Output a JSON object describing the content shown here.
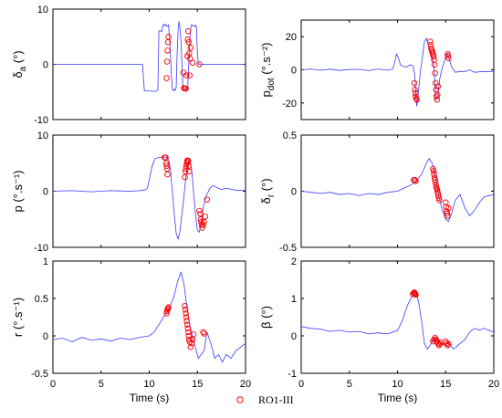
{
  "colors": {
    "line": "#3a3aff",
    "marker": "#ff0000",
    "axis": "#000000"
  },
  "legend": {
    "label": "RO1-III",
    "marker": "circle"
  },
  "chart_data": [
    {
      "type": "line",
      "id": "delta_a",
      "ylabel": {
        "main": "δ",
        "sub": "a",
        "unit": "(°)"
      },
      "xlim": [
        0,
        20
      ],
      "ylim": [
        -10,
        10
      ],
      "xticks": [],
      "yticks": [
        -10,
        0,
        10
      ],
      "xlabel": "",
      "series": [
        {
          "style": "line",
          "x": [
            0,
            9.3,
            9.5,
            10.7,
            10.9,
            11.0,
            11.1,
            11.2,
            11.3,
            11.4,
            11.5,
            11.6,
            11.7,
            11.8,
            11.9,
            12.0,
            12.1,
            12.2,
            12.3,
            12.4,
            12.5,
            12.6,
            12.7,
            12.8,
            12.9,
            13.0,
            13.1,
            13.2,
            13.3,
            13.4,
            13.5,
            13.6,
            13.7,
            13.8,
            13.9,
            14.0,
            14.1,
            14.2,
            14.3,
            14.4,
            14.5,
            14.6,
            14.7,
            14.8,
            14.9,
            15.0,
            15.1,
            15.2,
            15.3,
            15.5,
            20
          ],
          "y": [
            0,
            0,
            -4.8,
            -4.9,
            -4.6,
            6.0,
            6.1,
            6.0,
            5.9,
            7.0,
            7.2,
            7.0,
            7.3,
            7.0,
            6.9,
            7.1,
            5.0,
            2.0,
            -2.0,
            -4.5,
            -4.8,
            -4.5,
            -4.7,
            -4.2,
            2.0,
            6.5,
            7.8,
            6.5,
            4.0,
            0.0,
            -4.2,
            -4.6,
            -4.4,
            -4.3,
            -4.5,
            -4.2,
            0.0,
            4.0,
            6.5,
            7.2,
            7.0,
            7.0,
            6.9,
            7.1,
            6.8,
            2.0,
            0.0,
            0.1,
            -0.1,
            0.0,
            0.0
          ]
        },
        {
          "style": "markers",
          "x": [
            11.8,
            11.85,
            11.9,
            11.95,
            12.0,
            13.55,
            13.6,
            13.7,
            13.8,
            13.85,
            13.95,
            14.0,
            14.05,
            14.1,
            14.15,
            14.2,
            14.25,
            14.3,
            14.5,
            15.2
          ],
          "y": [
            -2.5,
            0.5,
            2.5,
            4.0,
            5.0,
            -1.5,
            -4.3,
            -4.4,
            -4.4,
            -2.0,
            1.5,
            4.5,
            6.0,
            4.0,
            2.0,
            -2.0,
            1.0,
            3.0,
            0.3,
            0.0
          ]
        }
      ]
    },
    {
      "type": "line",
      "id": "p_dot",
      "ylabel": {
        "main": "p",
        "sub": "dot",
        "unit": "(°.s⁻²)"
      },
      "xlim": [
        0,
        20
      ],
      "ylim": [
        -30,
        30
      ],
      "xticks": [],
      "yticks": [
        -20,
        0,
        20
      ],
      "xlabel": "",
      "series": [
        {
          "style": "line",
          "x": [
            0,
            1,
            2,
            3,
            4,
            5,
            6,
            7,
            8,
            9,
            9.5,
            9.7,
            9.9,
            10.1,
            10.3,
            10.6,
            11.0,
            11.3,
            11.6,
            11.8,
            11.9,
            12.0,
            12.2,
            12.4,
            12.6,
            12.8,
            13.0,
            13.2,
            13.4,
            13.6,
            13.8,
            13.9,
            14.0,
            14.2,
            14.4,
            14.6,
            14.8,
            15.0,
            15.2,
            15.4,
            15.6,
            15.8,
            16.0,
            16.5,
            17,
            17.5,
            18,
            19,
            20
          ],
          "y": [
            0,
            0.5,
            -0.3,
            0.4,
            -0.4,
            0.2,
            0.3,
            -0.5,
            0.5,
            -0.3,
            0.5,
            4.0,
            9.5,
            7.0,
            3.0,
            2.0,
            1.8,
            3.0,
            2.5,
            -3.0,
            -15.0,
            -22.0,
            -12.0,
            0.0,
            8.0,
            17.0,
            19.0,
            15.0,
            12.0,
            8.0,
            2.0,
            -10.0,
            -18.0,
            -16.0,
            -5.0,
            0.0,
            4.0,
            8.0,
            10.0,
            6.0,
            2.0,
            0.0,
            -1.5,
            -1.0,
            -1.0,
            0.0,
            -1.5,
            -1.0,
            -1.0
          ]
        },
        {
          "style": "markers",
          "x": [
            11.75,
            11.8,
            11.85,
            11.9,
            11.95,
            12.0,
            13.4,
            13.45,
            13.5,
            13.55,
            13.6,
            13.65,
            13.7,
            13.75,
            13.8,
            13.85,
            13.9,
            13.95,
            14.0,
            14.05,
            14.1,
            14.15,
            14.2,
            15.2,
            15.25,
            15.3
          ],
          "y": [
            -8.0,
            -12.0,
            -14.0,
            -16.0,
            -17.5,
            -18.0,
            17.0,
            15.0,
            13.0,
            12.0,
            11.0,
            10.0,
            9.0,
            8.0,
            6.0,
            3.0,
            -2.0,
            -8.0,
            -12.0,
            -16.0,
            -18.0,
            -15.0,
            -10.0,
            9.5,
            8.5,
            7.0
          ]
        }
      ]
    },
    {
      "type": "line",
      "id": "p",
      "ylabel": {
        "main": "p",
        "sub": "",
        "unit": "(°.s⁻¹)"
      },
      "xlim": [
        0,
        20
      ],
      "ylim": [
        -10,
        10
      ],
      "xticks": [],
      "yticks": [
        -10,
        0,
        10
      ],
      "xlabel": "",
      "series": [
        {
          "style": "line",
          "x": [
            0,
            2,
            4,
            6,
            8,
            9.0,
            9.5,
            9.8,
            10.0,
            10.3,
            10.6,
            11.0,
            11.4,
            11.8,
            12.0,
            12.2,
            12.4,
            12.6,
            12.8,
            13.0,
            13.2,
            13.4,
            13.6,
            13.8,
            14.0,
            14.2,
            14.4,
            14.6,
            14.8,
            15.0,
            15.2,
            15.4,
            15.6,
            15.8,
            16.0,
            16.3,
            16.6,
            17.0,
            17.5,
            18,
            19,
            20
          ],
          "y": [
            0,
            0.1,
            -0.1,
            0.1,
            0,
            0.1,
            0.2,
            0.5,
            2.0,
            4.5,
            5.8,
            6.0,
            6.1,
            6.0,
            5.8,
            4.0,
            0.0,
            -4.0,
            -7.5,
            -8.5,
            -7.0,
            -4.0,
            -1.0,
            2.5,
            5.0,
            5.8,
            4.0,
            0.0,
            -4.0,
            -7.0,
            -7.3,
            -5.5,
            -3.0,
            -1.5,
            -0.5,
            0.5,
            1.0,
            0.7,
            0.3,
            0.5,
            0.2,
            0.1
          ]
        },
        {
          "style": "markers",
          "x": [
            11.6,
            11.7,
            11.75,
            11.8,
            11.85,
            11.9,
            13.7,
            13.75,
            13.8,
            13.85,
            13.9,
            13.95,
            14.0,
            14.05,
            14.1,
            14.15,
            15.2,
            15.3,
            15.35,
            15.4,
            15.45,
            15.5,
            15.6,
            15.7,
            15.8,
            16.0
          ],
          "y": [
            6.0,
            6.0,
            5.0,
            4.5,
            4.0,
            3.0,
            2.5,
            3.5,
            4.0,
            4.5,
            5.0,
            5.5,
            5.2,
            5.4,
            4.5,
            3.5,
            -3.5,
            -4.0,
            -5.0,
            -5.5,
            -6.0,
            -6.5,
            -6.0,
            -5.5,
            -4.5,
            -1.5
          ]
        }
      ]
    },
    {
      "type": "line",
      "id": "delta_r",
      "ylabel": {
        "main": "δ",
        "sub": "r",
        "unit": "(°)"
      },
      "xlim": [
        0,
        20
      ],
      "ylim": [
        -0.5,
        0.5
      ],
      "xticks": [],
      "yticks": [
        -0.5,
        0,
        0.5
      ],
      "xlabel": "",
      "series": [
        {
          "style": "line",
          "x": [
            0,
            1,
            2,
            3,
            4,
            5,
            6,
            7,
            8,
            9,
            10,
            10.5,
            11,
            11.5,
            12.0,
            12.5,
            13.0,
            13.3,
            13.6,
            14.0,
            14.3,
            14.6,
            15.0,
            15.3,
            15.6,
            16.0,
            16.5,
            17.0,
            17.5,
            18.0,
            18.5,
            19.0,
            20
          ],
          "y": [
            0,
            -0.01,
            -0.02,
            -0.01,
            -0.03,
            -0.02,
            -0.04,
            -0.02,
            -0.03,
            -0.01,
            0,
            0.02,
            0.04,
            0.06,
            0.1,
            0.15,
            0.25,
            0.29,
            0.25,
            0.1,
            -0.05,
            -0.15,
            -0.25,
            -0.27,
            -0.2,
            -0.08,
            -0.03,
            -0.15,
            -0.22,
            -0.17,
            -0.1,
            -0.05,
            -0.03
          ]
        },
        {
          "style": "markers",
          "x": [
            11.7,
            11.8,
            11.9,
            13.7,
            13.75,
            13.8,
            13.85,
            13.9,
            13.95,
            14.0,
            14.05,
            14.1,
            14.15,
            14.2,
            14.25,
            14.3,
            14.35,
            15.0,
            15.05,
            15.1,
            15.15,
            15.2,
            15.3
          ],
          "y": [
            0.1,
            0.1,
            0.09,
            0.2,
            0.18,
            0.15,
            0.12,
            0.1,
            0.08,
            0.05,
            0.03,
            0.02,
            0.0,
            -0.02,
            -0.04,
            -0.06,
            -0.08,
            -0.1,
            -0.14,
            -0.18,
            -0.2,
            -0.22,
            -0.15
          ]
        }
      ]
    },
    {
      "type": "line",
      "id": "r",
      "ylabel": {
        "main": "r",
        "sub": "",
        "unit": "(°.s⁻¹)"
      },
      "xlim": [
        0,
        20
      ],
      "ylim": [
        -0.5,
        1
      ],
      "xticks": [
        0,
        5,
        10,
        15,
        20
      ],
      "yticks": [
        -0.5,
        0,
        0.5,
        1
      ],
      "xlabel": "Time (s)",
      "series": [
        {
          "style": "line",
          "x": [
            0,
            1,
            2,
            3,
            4,
            5,
            6,
            7,
            8,
            9,
            10,
            10.5,
            11.0,
            11.5,
            12.0,
            12.5,
            13.0,
            13.3,
            13.6,
            13.9,
            14.2,
            14.5,
            14.8,
            15.1,
            15.4,
            15.7,
            16.0,
            16.4,
            16.8,
            17.2,
            17.6,
            18.0,
            18.5,
            19.0,
            19.5,
            20
          ],
          "y": [
            -0.05,
            -0.03,
            -0.08,
            -0.02,
            -0.06,
            -0.04,
            -0.07,
            -0.03,
            -0.05,
            -0.02,
            0,
            0.05,
            0.15,
            0.25,
            0.35,
            0.5,
            0.75,
            0.85,
            0.7,
            0.4,
            0.15,
            0.0,
            -0.15,
            -0.3,
            -0.25,
            -0.2,
            0.05,
            -0.1,
            -0.3,
            -0.25,
            -0.35,
            -0.25,
            -0.3,
            -0.2,
            -0.15,
            -0.1
          ]
        },
        {
          "style": "markers",
          "x": [
            11.8,
            11.85,
            11.9,
            11.95,
            12.0,
            13.7,
            13.75,
            13.8,
            13.85,
            13.9,
            13.95,
            14.0,
            14.05,
            14.1,
            14.15,
            14.2,
            14.3,
            14.4,
            14.5,
            14.6,
            15.6,
            15.7
          ],
          "y": [
            0.3,
            0.33,
            0.35,
            0.37,
            0.38,
            0.4,
            0.35,
            0.3,
            0.25,
            0.2,
            0.15,
            0.1,
            0.05,
            0.0,
            -0.05,
            -0.08,
            -0.15,
            -0.1,
            -0.05,
            0.02,
            0.05,
            0.03
          ]
        }
      ]
    },
    {
      "type": "line",
      "id": "beta",
      "ylabel": {
        "main": "β",
        "sub": "",
        "unit": "(°)"
      },
      "xlim": [
        0,
        20
      ],
      "ylim": [
        -1,
        2
      ],
      "xticks": [
        0,
        5,
        10,
        15,
        20
      ],
      "yticks": [
        -1,
        0,
        1,
        2
      ],
      "xlabel": "Time (s)",
      "series": [
        {
          "style": "line",
          "x": [
            0,
            1,
            2,
            3,
            4,
            5,
            6,
            7,
            8,
            9,
            10,
            10.5,
            11.0,
            11.5,
            11.8,
            12.0,
            12.2,
            12.5,
            12.8,
            13.1,
            13.4,
            13.7,
            14.0,
            14.3,
            14.6,
            14.9,
            15.2,
            15.5,
            15.8,
            16.1,
            16.5,
            17.0,
            17.5,
            18.0,
            18.5,
            19.0,
            19.5,
            20
          ],
          "y": [
            0.25,
            0.2,
            0.18,
            0.12,
            0.15,
            0.1,
            0.12,
            0.05,
            0.08,
            0.05,
            0.15,
            0.4,
            0.8,
            1.05,
            1.15,
            1.1,
            0.9,
            0.4,
            -0.2,
            -0.35,
            -0.25,
            -0.1,
            -0.05,
            -0.15,
            -0.2,
            -0.25,
            -0.2,
            -0.25,
            -0.35,
            -0.3,
            -0.2,
            -0.1,
            0.1,
            0.2,
            0.15,
            0.2,
            0.15,
            0.1
          ]
        },
        {
          "style": "markers",
          "x": [
            11.6,
            11.7,
            11.75,
            11.8,
            11.85,
            11.9,
            13.7,
            13.8,
            13.9,
            14.0,
            14.1,
            14.2,
            14.3,
            14.4,
            14.5,
            15.0,
            15.1,
            15.2,
            15.3
          ],
          "y": [
            1.12,
            1.15,
            1.16,
            1.14,
            1.12,
            1.1,
            -0.15,
            -0.1,
            -0.05,
            -0.1,
            -0.15,
            -0.2,
            -0.25,
            -0.22,
            -0.18,
            -0.15,
            -0.2,
            -0.25,
            -0.22
          ]
        }
      ]
    }
  ]
}
